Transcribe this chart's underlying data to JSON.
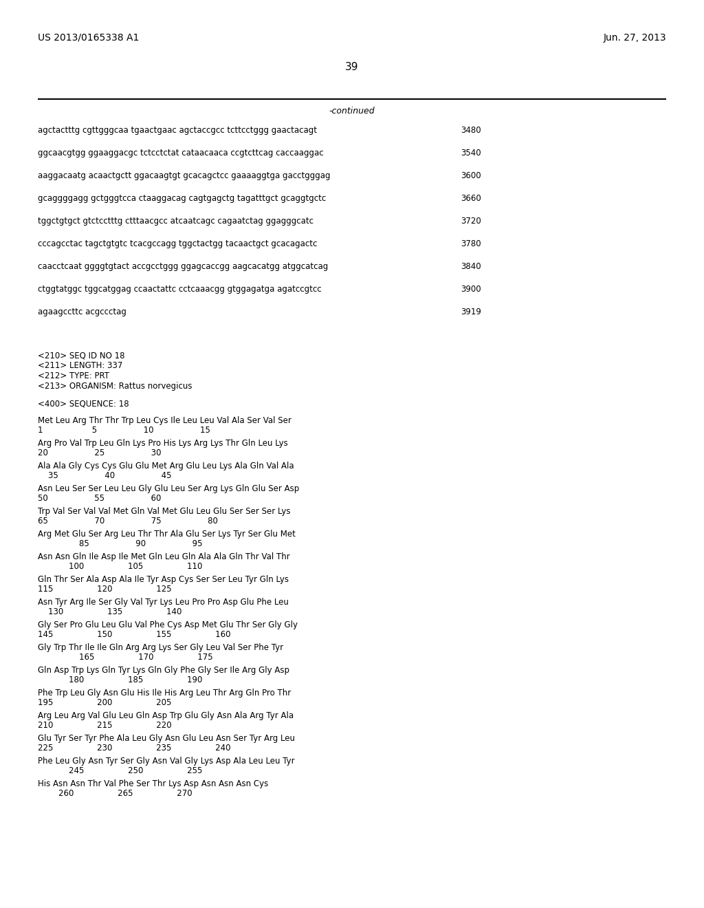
{
  "header_left": "US 2013/0165338 A1",
  "header_right": "Jun. 27, 2013",
  "page_number": "39",
  "continued_label": "-continued",
  "background_color": "#ffffff",
  "text_color": "#000000",
  "dna_lines": [
    {
      "seq": "agctactttg cgttgggcaa tgaactgaac agctaccgcc tcttcctggg gaactacagt",
      "num": "3480"
    },
    {
      "seq": "ggcaacgtgg ggaaggacgc tctcctctat cataacaaca ccgtcttcag caccaaggac",
      "num": "3540"
    },
    {
      "seq": "aaggacaatg acaactgctt ggacaagtgt gcacagctcc gaaaaggtga gacctgggag",
      "num": "3600"
    },
    {
      "seq": "gcaggggagg gctgggtcca ctaaggacag cagtgagctg tagatttgct gcaggtgctc",
      "num": "3660"
    },
    {
      "seq": "tggctgtgct gtctcctttg ctttaacgcc atcaatcagc cagaatctag ggagggcatc",
      "num": "3720"
    },
    {
      "seq": "cccagcctac tagctgtgtc tcacgccagg tggctactgg tacaactgct gcacagactc",
      "num": "3780"
    },
    {
      "seq": "caacctcaat ggggtgtact accgcctggg ggagcaccgg aagcacatgg atggcatcag",
      "num": "3840"
    },
    {
      "seq": "ctggtatggc tggcatggag ccaactattc cctcaaacgg gtggagatga agatccgtcc",
      "num": "3900"
    },
    {
      "seq": "agaagccttc acgccctag",
      "num": "3919"
    }
  ],
  "seq_info": [
    "<210> SEQ ID NO 18",
    "<211> LENGTH: 337",
    "<212> TYPE: PRT",
    "<213> ORGANISM: Rattus norvegicus"
  ],
  "seq_header": "<400> SEQUENCE: 18",
  "protein_lines": [
    {
      "seq": "Met Leu Arg Thr Thr Trp Leu Cys Ile Leu Leu Val Ala Ser Val Ser",
      "nums": "1                   5                  10                  15"
    },
    {
      "seq": "Arg Pro Val Trp Leu Gln Lys Pro His Lys Arg Lys Thr Gln Leu Lys",
      "nums": "20                  25                  30"
    },
    {
      "seq": "Ala Ala Gly Cys Cys Glu Glu Met Arg Glu Leu Lys Ala Gln Val Ala",
      "nums": "    35                  40                  45"
    },
    {
      "seq": "Asn Leu Ser Ser Leu Leu Gly Glu Leu Ser Arg Lys Gln Glu Ser Asp",
      "nums": "50                  55                  60"
    },
    {
      "seq": "Trp Val Ser Val Val Met Gln Val Met Glu Leu Glu Ser Ser Ser Lys",
      "nums": "65                  70                  75                  80"
    },
    {
      "seq": "Arg Met Glu Ser Arg Leu Thr Thr Ala Glu Ser Lys Tyr Ser Glu Met",
      "nums": "                85                  90                  95"
    },
    {
      "seq": "Asn Asn Gln Ile Asp Ile Met Gln Leu Gln Ala Ala Gln Thr Val Thr",
      "nums": "            100                 105                 110"
    },
    {
      "seq": "Gln Thr Ser Ala Asp Ala Ile Tyr Asp Cys Ser Ser Leu Tyr Gln Lys",
      "nums": "115                 120                 125"
    },
    {
      "seq": "Asn Tyr Arg Ile Ser Gly Val Tyr Lys Leu Pro Pro Asp Glu Phe Leu",
      "nums": "    130                 135                 140"
    },
    {
      "seq": "Gly Ser Pro Glu Leu Glu Val Phe Cys Asp Met Glu Thr Ser Gly Gly",
      "nums": "145                 150                 155                 160"
    },
    {
      "seq": "Gly Trp Thr Ile Ile Gln Arg Arg Lys Ser Gly Leu Val Ser Phe Tyr",
      "nums": "                165                 170                 175"
    },
    {
      "seq": "Gln Asp Trp Lys Gln Tyr Lys Gln Gly Phe Gly Ser Ile Arg Gly Asp",
      "nums": "            180                 185                 190"
    },
    {
      "seq": "Phe Trp Leu Gly Asn Glu His Ile His Arg Leu Thr Arg Gln Pro Thr",
      "nums": "195                 200                 205"
    },
    {
      "seq": "Arg Leu Arg Val Glu Leu Gln Asp Trp Glu Gly Asn Ala Arg Tyr Ala",
      "nums": "210                 215                 220"
    },
    {
      "seq": "Glu Tyr Ser Tyr Phe Ala Leu Gly Asn Glu Leu Asn Ser Tyr Arg Leu",
      "nums": "225                 230                 235                 240"
    },
    {
      "seq": "Phe Leu Gly Asn Tyr Ser Gly Asn Val Gly Lys Asp Ala Leu Leu Tyr",
      "nums": "            245                 250                 255"
    },
    {
      "seq": "His Asn Asn Thr Val Phe Ser Thr Lys Asp Asn Asn Asn Cys",
      "nums": "        260                 265                 270"
    }
  ]
}
